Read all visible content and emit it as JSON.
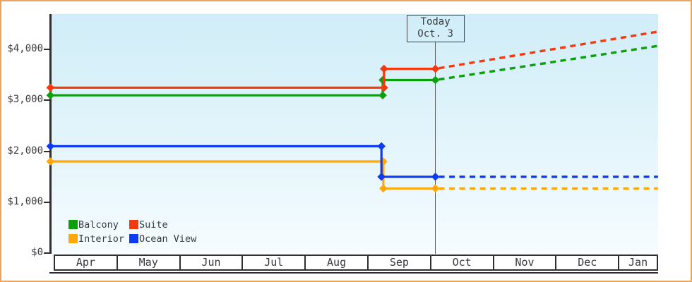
{
  "page": {
    "border_color": "#E8A55E",
    "background_color": "#FFFFFF",
    "plot_background_top": "#D0EDF8",
    "plot_background_bottom": "#F6FCFF"
  },
  "chart_data": {
    "type": "line",
    "description": "Cruise cabin price history (solid step lines) with forecast after today (dotted lines)",
    "x_unit": "months since Apr 1 (fraction = day of month)",
    "x_axis": {
      "tick_labels": [
        "Apr",
        "May",
        "Jun",
        "Jul",
        "Aug",
        "Sep",
        "Oct",
        "Nov",
        "Dec",
        "Jan"
      ]
    },
    "y_axis": {
      "tick_values": [
        0,
        1000,
        2000,
        3000,
        4000
      ],
      "tick_labels": [
        "$0",
        "$1,000",
        "$2,000",
        "$3,000",
        "$4,000"
      ],
      "range": [
        0,
        4700
      ]
    },
    "annotation": {
      "line1": "Today",
      "line2": "Oct. 3",
      "x_months": 6.08
    },
    "grid": "off",
    "legend": {
      "position": "bottom-left",
      "items": [
        {
          "label": "Balcony",
          "color": "#0C9F0C"
        },
        {
          "label": "Suite",
          "color": "#F23A0E"
        },
        {
          "label": "Interior",
          "color": "#FFA808"
        },
        {
          "label": "Ocean View",
          "color": "#0B3BF8"
        }
      ]
    },
    "series": [
      {
        "name": "Balcony",
        "color": "#0C9F0C",
        "price_before_change": 3100,
        "price_after_change": 3400,
        "change_x_months": 5.24,
        "forecast_end_value": 4070,
        "solid_points": [
          [
            -0.06,
            3100
          ],
          [
            5.24,
            3100
          ],
          [
            5.24,
            3400
          ],
          [
            6.08,
            3400
          ]
        ],
        "forecast_points": [
          [
            6.08,
            3400
          ],
          [
            9.63,
            4070
          ]
        ]
      },
      {
        "name": "Suite",
        "color": "#F23A0E",
        "price_before_change": 3250,
        "price_after_change": 3620,
        "change_x_months": 5.26,
        "forecast_end_value": 4350,
        "solid_points": [
          [
            -0.06,
            3250
          ],
          [
            5.26,
            3250
          ],
          [
            5.26,
            3620
          ],
          [
            6.08,
            3620
          ]
        ],
        "forecast_points": [
          [
            6.08,
            3620
          ],
          [
            9.63,
            4350
          ]
        ]
      },
      {
        "name": "Interior",
        "color": "#FFA808",
        "price_before_change": 1800,
        "price_after_change": 1270,
        "change_x_months": 5.25,
        "forecast_end_value": 1270,
        "solid_points": [
          [
            -0.06,
            1800
          ],
          [
            5.25,
            1800
          ],
          [
            5.25,
            1270
          ],
          [
            6.08,
            1270
          ]
        ],
        "forecast_points": [
          [
            6.08,
            1270
          ],
          [
            9.63,
            1270
          ]
        ]
      },
      {
        "name": "Ocean View",
        "color": "#0B3BF8",
        "price_before_change": 2100,
        "price_after_change": 1500,
        "change_x_months": 5.22,
        "forecast_end_value": 1500,
        "solid_points": [
          [
            -0.06,
            2100
          ],
          [
            5.22,
            2100
          ],
          [
            5.22,
            1500
          ],
          [
            6.08,
            1500
          ]
        ],
        "forecast_points": [
          [
            6.08,
            1500
          ],
          [
            9.63,
            1500
          ]
        ]
      }
    ]
  }
}
